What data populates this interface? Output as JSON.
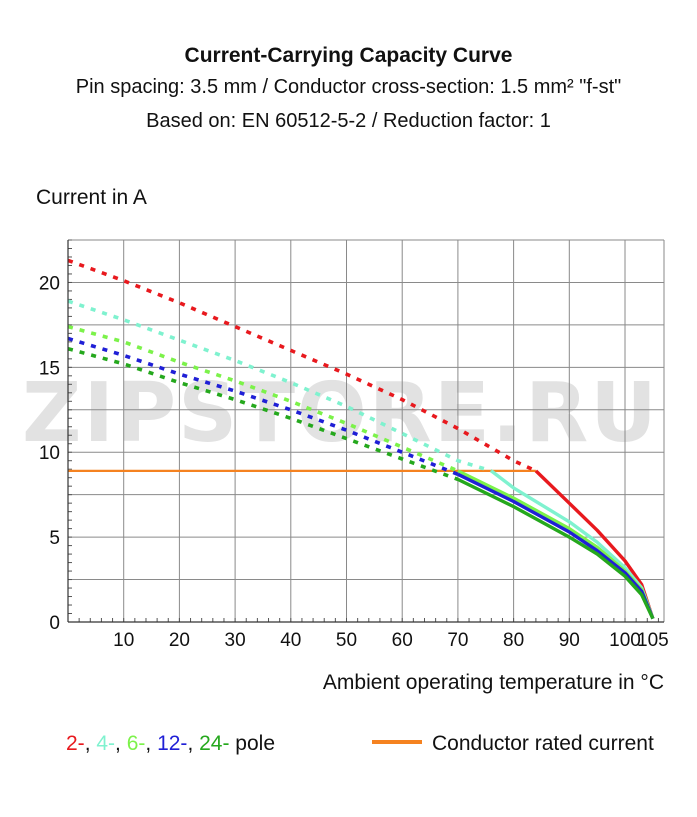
{
  "title": "Current-Carrying Capacity Curve",
  "subtitle_line1": "Pin spacing: 3.5 mm / Conductor cross-section: 1.5 mm² \"f-st\"",
  "subtitle_line2": "Based on: EN 60512-5-2 / Reduction factor: 1",
  "watermark": "ZIPSTORE.RU",
  "legend": {
    "poles": [
      {
        "label": "2-",
        "color": "#e8191e"
      },
      {
        "label": ", ",
        "color": "#111111"
      },
      {
        "label": "4-",
        "color": "#7ff2cf"
      },
      {
        "label": ", ",
        "color": "#111111"
      },
      {
        "label": "6-",
        "color": "#7cf24a"
      },
      {
        "label": ", ",
        "color": "#111111"
      },
      {
        "label": "12-",
        "color": "#1f1fd6"
      },
      {
        "label": ", ",
        "color": "#111111"
      },
      {
        "label": "24-",
        "color": "#25a81d"
      },
      {
        "label": " pole",
        "color": "#111111"
      }
    ],
    "rated": {
      "label": "Conductor rated current",
      "color": "#f58220"
    }
  },
  "chart_data": {
    "type": "line",
    "title": "Current-Carrying Capacity Curve",
    "xlabel": "Ambient operating temperature in °C",
    "ylabel": "Current in A",
    "xlim": [
      0,
      107
    ],
    "ylim": [
      0,
      22.5
    ],
    "x_ticks": [
      10,
      20,
      30,
      40,
      50,
      60,
      70,
      80,
      90,
      100,
      105
    ],
    "y_ticks": [
      0,
      5,
      10,
      15,
      20
    ],
    "grid": true,
    "legend_position": "bottom",
    "rated_current": {
      "name": "Conductor rated current",
      "value": 8.9,
      "x": [
        0,
        84
      ],
      "color": "#f58220"
    },
    "series": [
      {
        "name": "2-",
        "color": "#e8191e",
        "dotted": [
          [
            0,
            21.3
          ],
          [
            10,
            20.1
          ],
          [
            20,
            18.8
          ],
          [
            30,
            17.4
          ],
          [
            40,
            16.0
          ],
          [
            50,
            14.6
          ],
          [
            60,
            13.1
          ],
          [
            70,
            11.4
          ],
          [
            80,
            9.5
          ],
          [
            84,
            8.9
          ]
        ],
        "solid": [
          [
            84,
            8.9
          ],
          [
            90,
            7.0
          ],
          [
            95,
            5.4
          ],
          [
            100,
            3.6
          ],
          [
            103,
            2.2
          ],
          [
            105,
            0.2
          ]
        ]
      },
      {
        "name": "4-",
        "color": "#7ff2cf",
        "dotted": [
          [
            0,
            18.9
          ],
          [
            10,
            17.8
          ],
          [
            20,
            16.6
          ],
          [
            30,
            15.4
          ],
          [
            40,
            14.1
          ],
          [
            50,
            12.7
          ],
          [
            60,
            11.1
          ],
          [
            70,
            9.5
          ],
          [
            76,
            8.9
          ]
        ],
        "solid": [
          [
            76,
            8.9
          ],
          [
            80,
            7.9
          ],
          [
            90,
            5.9
          ],
          [
            95,
            4.7
          ],
          [
            100,
            3.2
          ],
          [
            103,
            2.0
          ],
          [
            105,
            0.2
          ]
        ]
      },
      {
        "name": "6-",
        "color": "#7cf24a",
        "dotted": [
          [
            0,
            17.4
          ],
          [
            10,
            16.5
          ],
          [
            20,
            15.3
          ],
          [
            30,
            14.2
          ],
          [
            40,
            13.0
          ],
          [
            50,
            11.7
          ],
          [
            60,
            10.3
          ],
          [
            70,
            8.9
          ]
        ],
        "solid": [
          [
            70,
            8.9
          ],
          [
            80,
            7.3
          ],
          [
            90,
            5.5
          ],
          [
            95,
            4.4
          ],
          [
            100,
            3.0
          ],
          [
            103,
            1.9
          ],
          [
            105,
            0.2
          ]
        ]
      },
      {
        "name": "12-",
        "color": "#1f1fd6",
        "dotted": [
          [
            0,
            16.7
          ],
          [
            10,
            15.7
          ],
          [
            20,
            14.6
          ],
          [
            30,
            13.6
          ],
          [
            40,
            12.5
          ],
          [
            50,
            11.3
          ],
          [
            60,
            10.0
          ],
          [
            70,
            8.7
          ]
        ],
        "solid": [
          [
            70,
            8.7
          ],
          [
            80,
            7.1
          ],
          [
            90,
            5.3
          ],
          [
            95,
            4.2
          ],
          [
            100,
            2.9
          ],
          [
            103,
            1.8
          ],
          [
            105,
            0.2
          ]
        ]
      },
      {
        "name": "24-",
        "color": "#25a81d",
        "dotted": [
          [
            0,
            16.1
          ],
          [
            10,
            15.2
          ],
          [
            20,
            14.1
          ],
          [
            30,
            13.1
          ],
          [
            40,
            12.0
          ],
          [
            50,
            10.8
          ],
          [
            60,
            9.6
          ],
          [
            70,
            8.4
          ]
        ],
        "solid": [
          [
            70,
            8.4
          ],
          [
            80,
            6.8
          ],
          [
            90,
            5.0
          ],
          [
            95,
            4.0
          ],
          [
            100,
            2.7
          ],
          [
            103,
            1.6
          ],
          [
            105,
            0.2
          ]
        ]
      }
    ]
  }
}
